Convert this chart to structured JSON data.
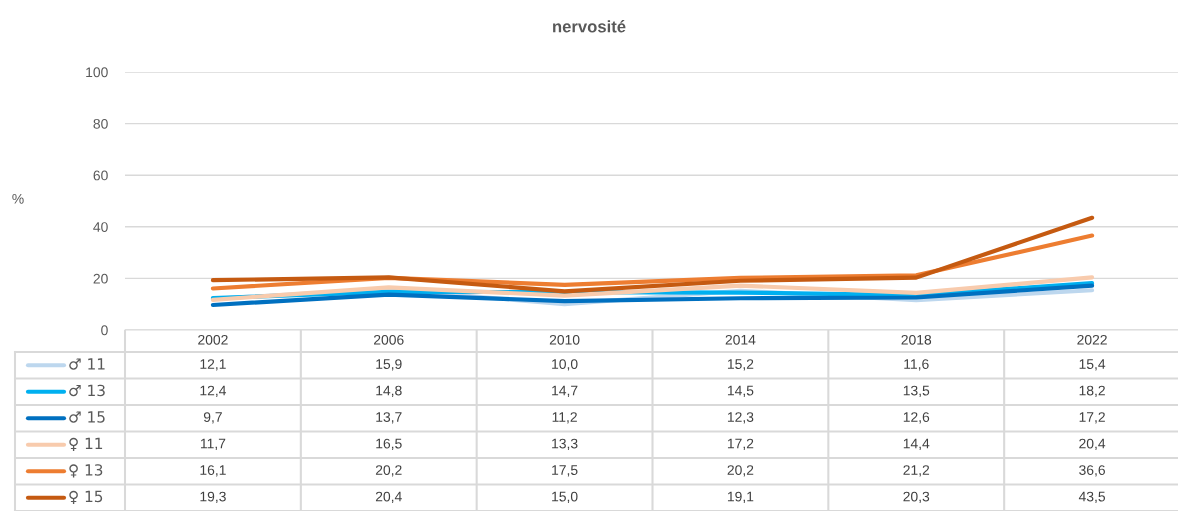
{
  "chart_data": {
    "type": "line",
    "title": "nervosité",
    "ylabel": "%",
    "categories": [
      "2002",
      "2006",
      "2010",
      "2014",
      "2018",
      "2022"
    ],
    "series": [
      {
        "name": "♂ 11",
        "color": "#bdd7ee",
        "values": [
          12.1,
          15.9,
          10.0,
          15.2,
          11.6,
          15.4
        ],
        "value_labels": [
          "12,1",
          "15,9",
          "10,0",
          "15,2",
          "11,6",
          "15,4"
        ]
      },
      {
        "name": "♂ 13",
        "color": "#00b0f0",
        "values": [
          12.4,
          14.8,
          14.7,
          14.5,
          13.5,
          18.2
        ],
        "value_labels": [
          "12,4",
          "14,8",
          "14,7",
          "14,5",
          "13,5",
          "18,2"
        ]
      },
      {
        "name": "♂ 15",
        "color": "#0070c0",
        "values": [
          9.7,
          13.7,
          11.2,
          12.3,
          12.6,
          17.2
        ],
        "value_labels": [
          "9,7",
          "13,7",
          "11,2",
          "12,3",
          "12,6",
          "17,2"
        ]
      },
      {
        "name": "♀ 11",
        "color": "#f8cbad",
        "values": [
          11.7,
          16.5,
          13.3,
          17.2,
          14.4,
          20.4
        ],
        "value_labels": [
          "11,7",
          "16,5",
          "13,3",
          "17,2",
          "14,4",
          "20,4"
        ]
      },
      {
        "name": "♀ 13",
        "color": "#ed7d31",
        "values": [
          16.1,
          20.2,
          17.5,
          20.2,
          21.2,
          36.6
        ],
        "value_labels": [
          "16,1",
          "20,2",
          "17,5",
          "20,2",
          "21,2",
          "36,6"
        ]
      },
      {
        "name": "♀ 15",
        "color": "#c55a11",
        "values": [
          19.3,
          20.4,
          15.0,
          19.1,
          20.3,
          43.5
        ],
        "value_labels": [
          "19,3",
          "20,4",
          "15,0",
          "19,1",
          "20,3",
          "43,5"
        ]
      }
    ],
    "ylim": [
      0,
      100
    ],
    "yticks": [
      0,
      20,
      40,
      60,
      80,
      100
    ],
    "grid": "y",
    "legend": "bottom",
    "marker": "none",
    "line_style": "solid"
  }
}
